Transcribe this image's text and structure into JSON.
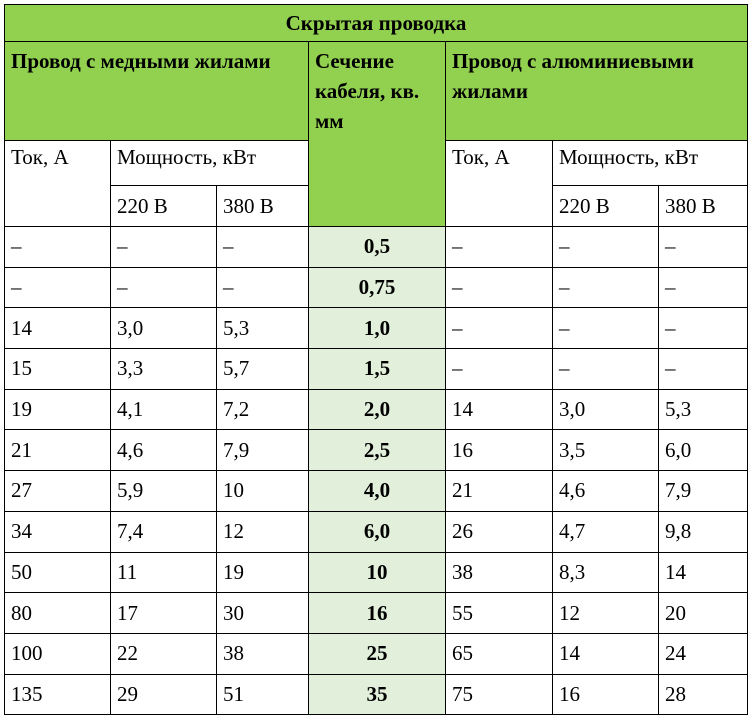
{
  "title": "Скрытая проводка",
  "copper_header": "Провод с медными жилами",
  "section_header": "Сечение кабеля, кв. мм",
  "aluminum_header": "Провод с алюминиевыми жилами",
  "current_label": "Ток, А",
  "power_label": "Мощность, кВт",
  "v220_label": "220 В",
  "v380_label": "380 В",
  "colors": {
    "header_green": "#92d050",
    "column_light_green": "#e2efda"
  },
  "rows": [
    {
      "cu_current": "–",
      "cu_p220": "–",
      "cu_p380": "–",
      "section": "0,5",
      "al_current": "–",
      "al_p220": "–",
      "al_p380": "–"
    },
    {
      "cu_current": "–",
      "cu_p220": "–",
      "cu_p380": "–",
      "section": "0,75",
      "al_current": "–",
      "al_p220": "–",
      "al_p380": "–"
    },
    {
      "cu_current": "14",
      "cu_p220": "3,0",
      "cu_p380": "5,3",
      "section": "1,0",
      "al_current": "–",
      "al_p220": "–",
      "al_p380": "–"
    },
    {
      "cu_current": "15",
      "cu_p220": "3,3",
      "cu_p380": "5,7",
      "section": "1,5",
      "al_current": "–",
      "al_p220": "–",
      "al_p380": "–"
    },
    {
      "cu_current": "19",
      "cu_p220": "4,1",
      "cu_p380": "7,2",
      "section": "2,0",
      "al_current": "14",
      "al_p220": "3,0",
      "al_p380": "5,3"
    },
    {
      "cu_current": "21",
      "cu_p220": "4,6",
      "cu_p380": "7,9",
      "section": "2,5",
      "al_current": "16",
      "al_p220": "3,5",
      "al_p380": "6,0"
    },
    {
      "cu_current": "27",
      "cu_p220": "5,9",
      "cu_p380": "10",
      "section": "4,0",
      "al_current": "21",
      "al_p220": "4,6",
      "al_p380": "7,9"
    },
    {
      "cu_current": "34",
      "cu_p220": "7,4",
      "cu_p380": "12",
      "section": "6,0",
      "al_current": "26",
      "al_p220": "4,7",
      "al_p380": "9,8"
    },
    {
      "cu_current": "50",
      "cu_p220": "11",
      "cu_p380": "19",
      "section": "10",
      "al_current": "38",
      "al_p220": "8,3",
      "al_p380": "14"
    },
    {
      "cu_current": "80",
      "cu_p220": "17",
      "cu_p380": "30",
      "section": "16",
      "al_current": "55",
      "al_p220": "12",
      "al_p380": "20"
    },
    {
      "cu_current": "100",
      "cu_p220": "22",
      "cu_p380": "38",
      "section": "25",
      "al_current": "65",
      "al_p220": "14",
      "al_p380": "24"
    },
    {
      "cu_current": "135",
      "cu_p220": "29",
      "cu_p380": "51",
      "section": "35",
      "al_current": "75",
      "al_p220": "16",
      "al_p380": "28"
    }
  ]
}
